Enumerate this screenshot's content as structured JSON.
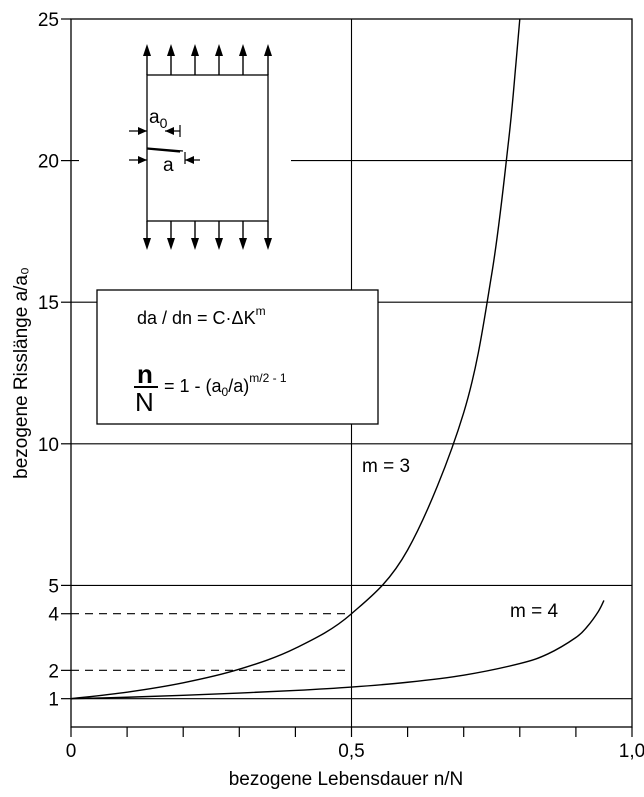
{
  "chart_data": {
    "type": "line",
    "xlabel": "bezogene Lebensdauer n/N",
    "ylabel": "bezogene Risslänge a/a₀",
    "xlim": [
      0,
      1.0
    ],
    "ylim": [
      0,
      25
    ],
    "x_ticks": [
      {
        "value": 0,
        "label": "0"
      },
      {
        "value": 0.5,
        "label": "0,5"
      },
      {
        "value": 1.0,
        "label": "1,0"
      }
    ],
    "x_minor_ticks": [
      0.1,
      0.2,
      0.3,
      0.4,
      0.6,
      0.7,
      0.8,
      0.9
    ],
    "y_ticks": [
      {
        "value": 1,
        "label": "1"
      },
      {
        "value": 2,
        "label": "2"
      },
      {
        "value": 4,
        "label": "4"
      },
      {
        "value": 5,
        "label": "5"
      },
      {
        "value": 10,
        "label": "10"
      },
      {
        "value": 15,
        "label": "15"
      },
      {
        "value": 20,
        "label": "20"
      },
      {
        "value": 25,
        "label": "25"
      }
    ],
    "grid": {
      "horizontal_solid": [
        1,
        5,
        10,
        15,
        20
      ],
      "horizontal_dashed": [
        2,
        4
      ],
      "vertical_solid": [
        0.5
      ]
    },
    "series": [
      {
        "name": "m = 3",
        "x": [
          0.0,
          0.1,
          0.2,
          0.3,
          0.4,
          0.5,
          0.6,
          0.7,
          0.75,
          0.78,
          0.793,
          0.8
        ],
        "y": [
          1.0,
          1.23,
          1.56,
          2.04,
          2.78,
          4.0,
          6.25,
          11.1,
          16.0,
          20.7,
          23.4,
          25.0
        ]
      },
      {
        "name": "m = 4",
        "x": [
          0.0,
          0.1,
          0.2,
          0.3,
          0.4,
          0.5,
          0.6,
          0.7,
          0.8,
          0.85,
          0.9,
          0.92,
          0.94,
          0.95
        ],
        "y": [
          1.0,
          1.05,
          1.12,
          1.2,
          1.29,
          1.41,
          1.58,
          1.83,
          2.24,
          2.58,
          3.16,
          3.54,
          4.08,
          4.47
        ]
      }
    ],
    "annotations": {
      "law": "da / dn = C·ΔK",
      "law_exp": "m",
      "frac_num": "n",
      "frac_den": "N",
      "formula_mid": "= 1 - (a",
      "formula_sub": "0",
      "formula_end": "/a)",
      "formula_exp": "m/2 - 1",
      "inset_a0": "a",
      "inset_a0_sub": "0",
      "inset_a": "a"
    }
  }
}
